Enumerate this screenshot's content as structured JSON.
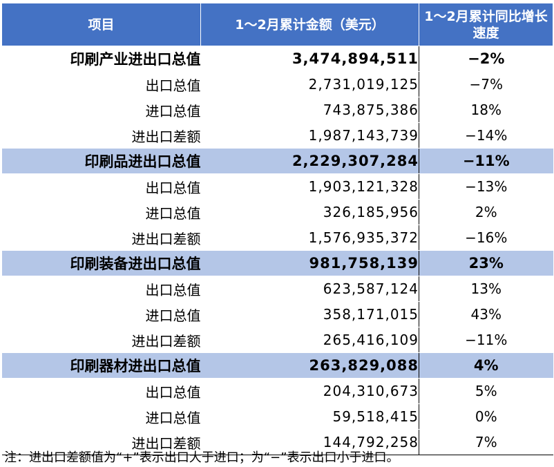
{
  "table": {
    "headers": [
      "项目",
      "1～2月累计金额（美元）",
      "1～2月累计同比增长速度"
    ],
    "rows": [
      {
        "item": "印刷产业进出口总值",
        "amount": "3,474,894,511",
        "growth": "−2%",
        "group": true,
        "shaded": false
      },
      {
        "item": "出口总值",
        "amount": "2,731,019,125",
        "growth": "−7%",
        "group": false,
        "shaded": false
      },
      {
        "item": "进口总值",
        "amount": "743,875,386",
        "growth": "18%",
        "group": false,
        "shaded": false
      },
      {
        "item": "进出口差额",
        "amount": "1,987,143,739",
        "growth": "−14%",
        "group": false,
        "shaded": false
      },
      {
        "item": "印刷品进出口总值",
        "amount": "2,229,307,284",
        "growth": "−11%",
        "group": true,
        "shaded": true
      },
      {
        "item": "出口总值",
        "amount": "1,903,121,328",
        "growth": "−13%",
        "group": false,
        "shaded": false
      },
      {
        "item": "进口总值",
        "amount": "326,185,956",
        "growth": "2%",
        "group": false,
        "shaded": false
      },
      {
        "item": "进出口差额",
        "amount": "1,576,935,372",
        "growth": "−16%",
        "group": false,
        "shaded": false
      },
      {
        "item": "印刷装备进出口总值",
        "amount": "981,758,139",
        "growth": "23%",
        "group": true,
        "shaded": true
      },
      {
        "item": "出口总值",
        "amount": "623,587,124",
        "growth": "13%",
        "group": false,
        "shaded": false
      },
      {
        "item": "进口总值",
        "amount": "358,171,015",
        "growth": "43%",
        "group": false,
        "shaded": false
      },
      {
        "item": "进出口差额",
        "amount": "265,416,109",
        "growth": "−11%",
        "group": false,
        "shaded": false
      },
      {
        "item": "印刷器材进出口总值",
        "amount": "263,829,088",
        "growth": "4%",
        "group": true,
        "shaded": true
      },
      {
        "item": "出口总值",
        "amount": "204,310,673",
        "growth": "5%",
        "group": false,
        "shaded": false
      },
      {
        "item": "进口总值",
        "amount": "59,518,415",
        "growth": "0%",
        "group": false,
        "shaded": false
      },
      {
        "item": "进出口差额",
        "amount": "144,792,258",
        "growth": "7%",
        "group": false,
        "shaded": false
      }
    ]
  },
  "note": "注：进出口差额值为“+”表示出口大于进口；为“−”表示出口小于进口。",
  "colors": {
    "header": "#4472C4",
    "shaded_row": "#B4C6E7"
  }
}
